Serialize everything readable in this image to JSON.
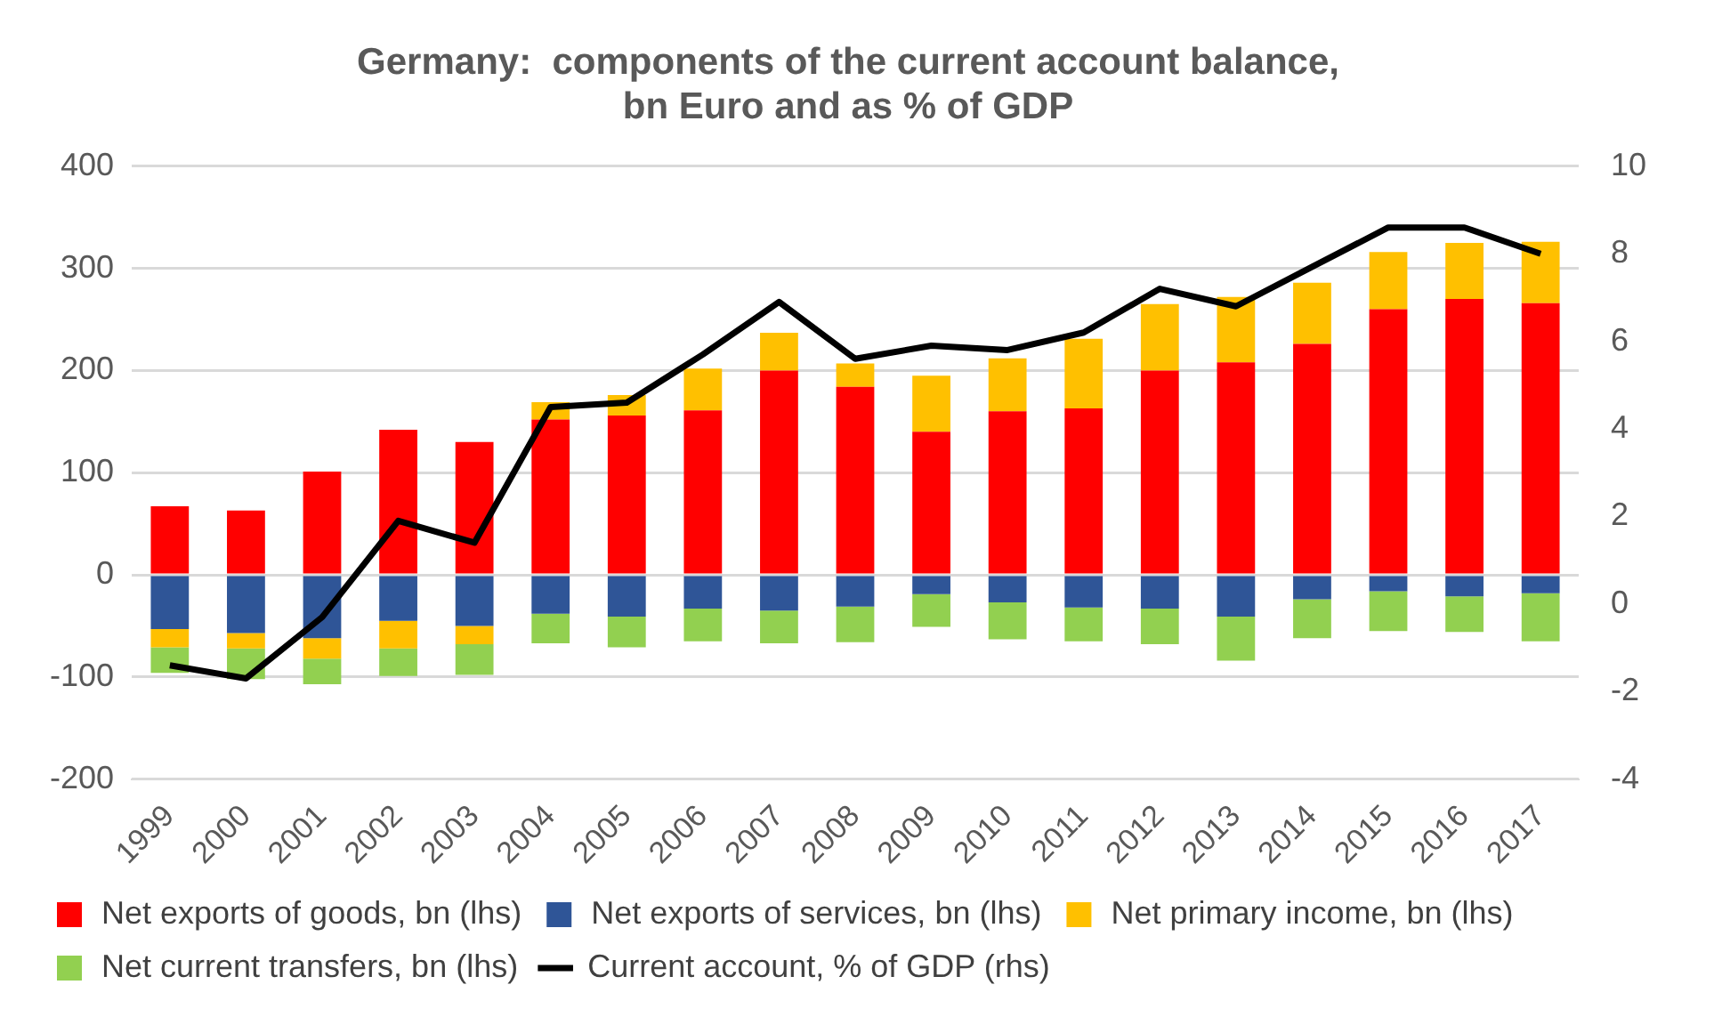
{
  "chart_data": {
    "type": "bar",
    "title": "Germany:  components of the current account balance,\nbn Euro and as % of GDP",
    "stacked": true,
    "legend": "bottom",
    "grid": "y",
    "categories": [
      "1999",
      "2000",
      "2001",
      "2002",
      "2003",
      "2004",
      "2005",
      "2006",
      "2007",
      "2008",
      "2009",
      "2010",
      "2011",
      "2012",
      "2013",
      "2014",
      "2015",
      "2016",
      "2017"
    ],
    "ylim": [
      -200,
      400
    ],
    "yticks": [
      -200,
      -100,
      0,
      100,
      200,
      300,
      400
    ],
    "y2lim": [
      -4,
      10
    ],
    "y2ticks": [
      -4,
      -2,
      0,
      2,
      4,
      6,
      8,
      10
    ],
    "series": [
      {
        "name": "Net exports of goods, bn (lhs)",
        "color": "#ff0000",
        "values": [
          67,
          63,
          101,
          142,
          130,
          152,
          156,
          161,
          200,
          184,
          140,
          160,
          163,
          200,
          208,
          226,
          260,
          270,
          266
        ]
      },
      {
        "name": "Net exports of services, bn (lhs)",
        "color": "#2f5597",
        "values": [
          -53,
          -57,
          -62,
          -45,
          -50,
          -38,
          -41,
          -33,
          -35,
          -31,
          -19,
          -27,
          -32,
          -33,
          -41,
          -24,
          -16,
          -21,
          -18
        ]
      },
      {
        "name": "Net primary income, bn (lhs)",
        "color": "#ffc000",
        "values": [
          -18,
          -15,
          -20,
          -27,
          -18,
          17,
          20,
          41,
          37,
          23,
          55,
          52,
          68,
          65,
          64,
          60,
          56,
          55,
          60
        ]
      },
      {
        "name": "Net current transfers, bn (lhs)",
        "color": "#92d050",
        "values": [
          -25,
          -30,
          -25,
          -27,
          -30,
          -29,
          -30,
          -32,
          -32,
          -35,
          -32,
          -36,
          -33,
          -35,
          -43,
          -38,
          -39,
          -35,
          -47
        ]
      },
      {
        "name": "Current account, % of GDP (rhs)",
        "type": "line",
        "axis": "y2",
        "color": "#000000",
        "marker": "none",
        "values": [
          -1.4,
          -1.7,
          -0.3,
          1.9,
          1.4,
          4.5,
          4.6,
          5.7,
          6.9,
          5.6,
          5.9,
          5.8,
          6.2,
          7.2,
          6.8,
          7.7,
          8.6,
          8.6,
          8.0
        ]
      }
    ]
  }
}
